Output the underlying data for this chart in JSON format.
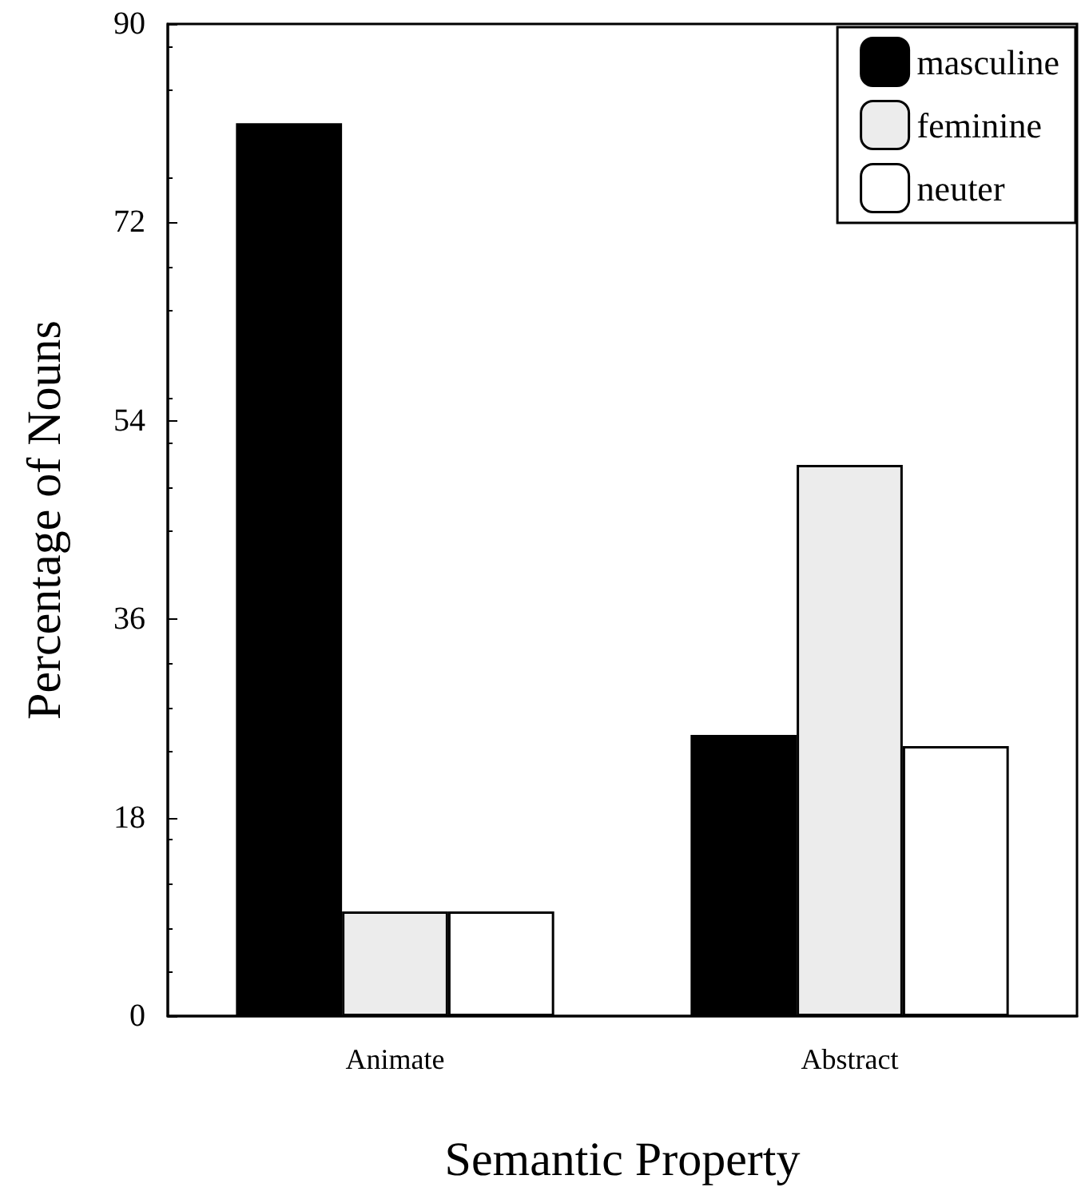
{
  "chart_data": {
    "type": "bar",
    "xlabel": "Semantic Property",
    "ylabel": "Percentage of Nouns",
    "categories": [
      "Animate",
      "Abstract"
    ],
    "series": [
      {
        "name": "masculine",
        "color": "#000000",
        "values": [
          81,
          25.5
        ]
      },
      {
        "name": "feminine",
        "color": "#ececec",
        "values": [
          9.5,
          50
        ]
      },
      {
        "name": "neuter",
        "color": "#ffffff",
        "values": [
          9.5,
          24.5
        ]
      }
    ],
    "ylim": [
      0,
      90
    ],
    "yticks": [
      0,
      18,
      36,
      54,
      72,
      90
    ],
    "grid": false,
    "legend": "top right"
  }
}
